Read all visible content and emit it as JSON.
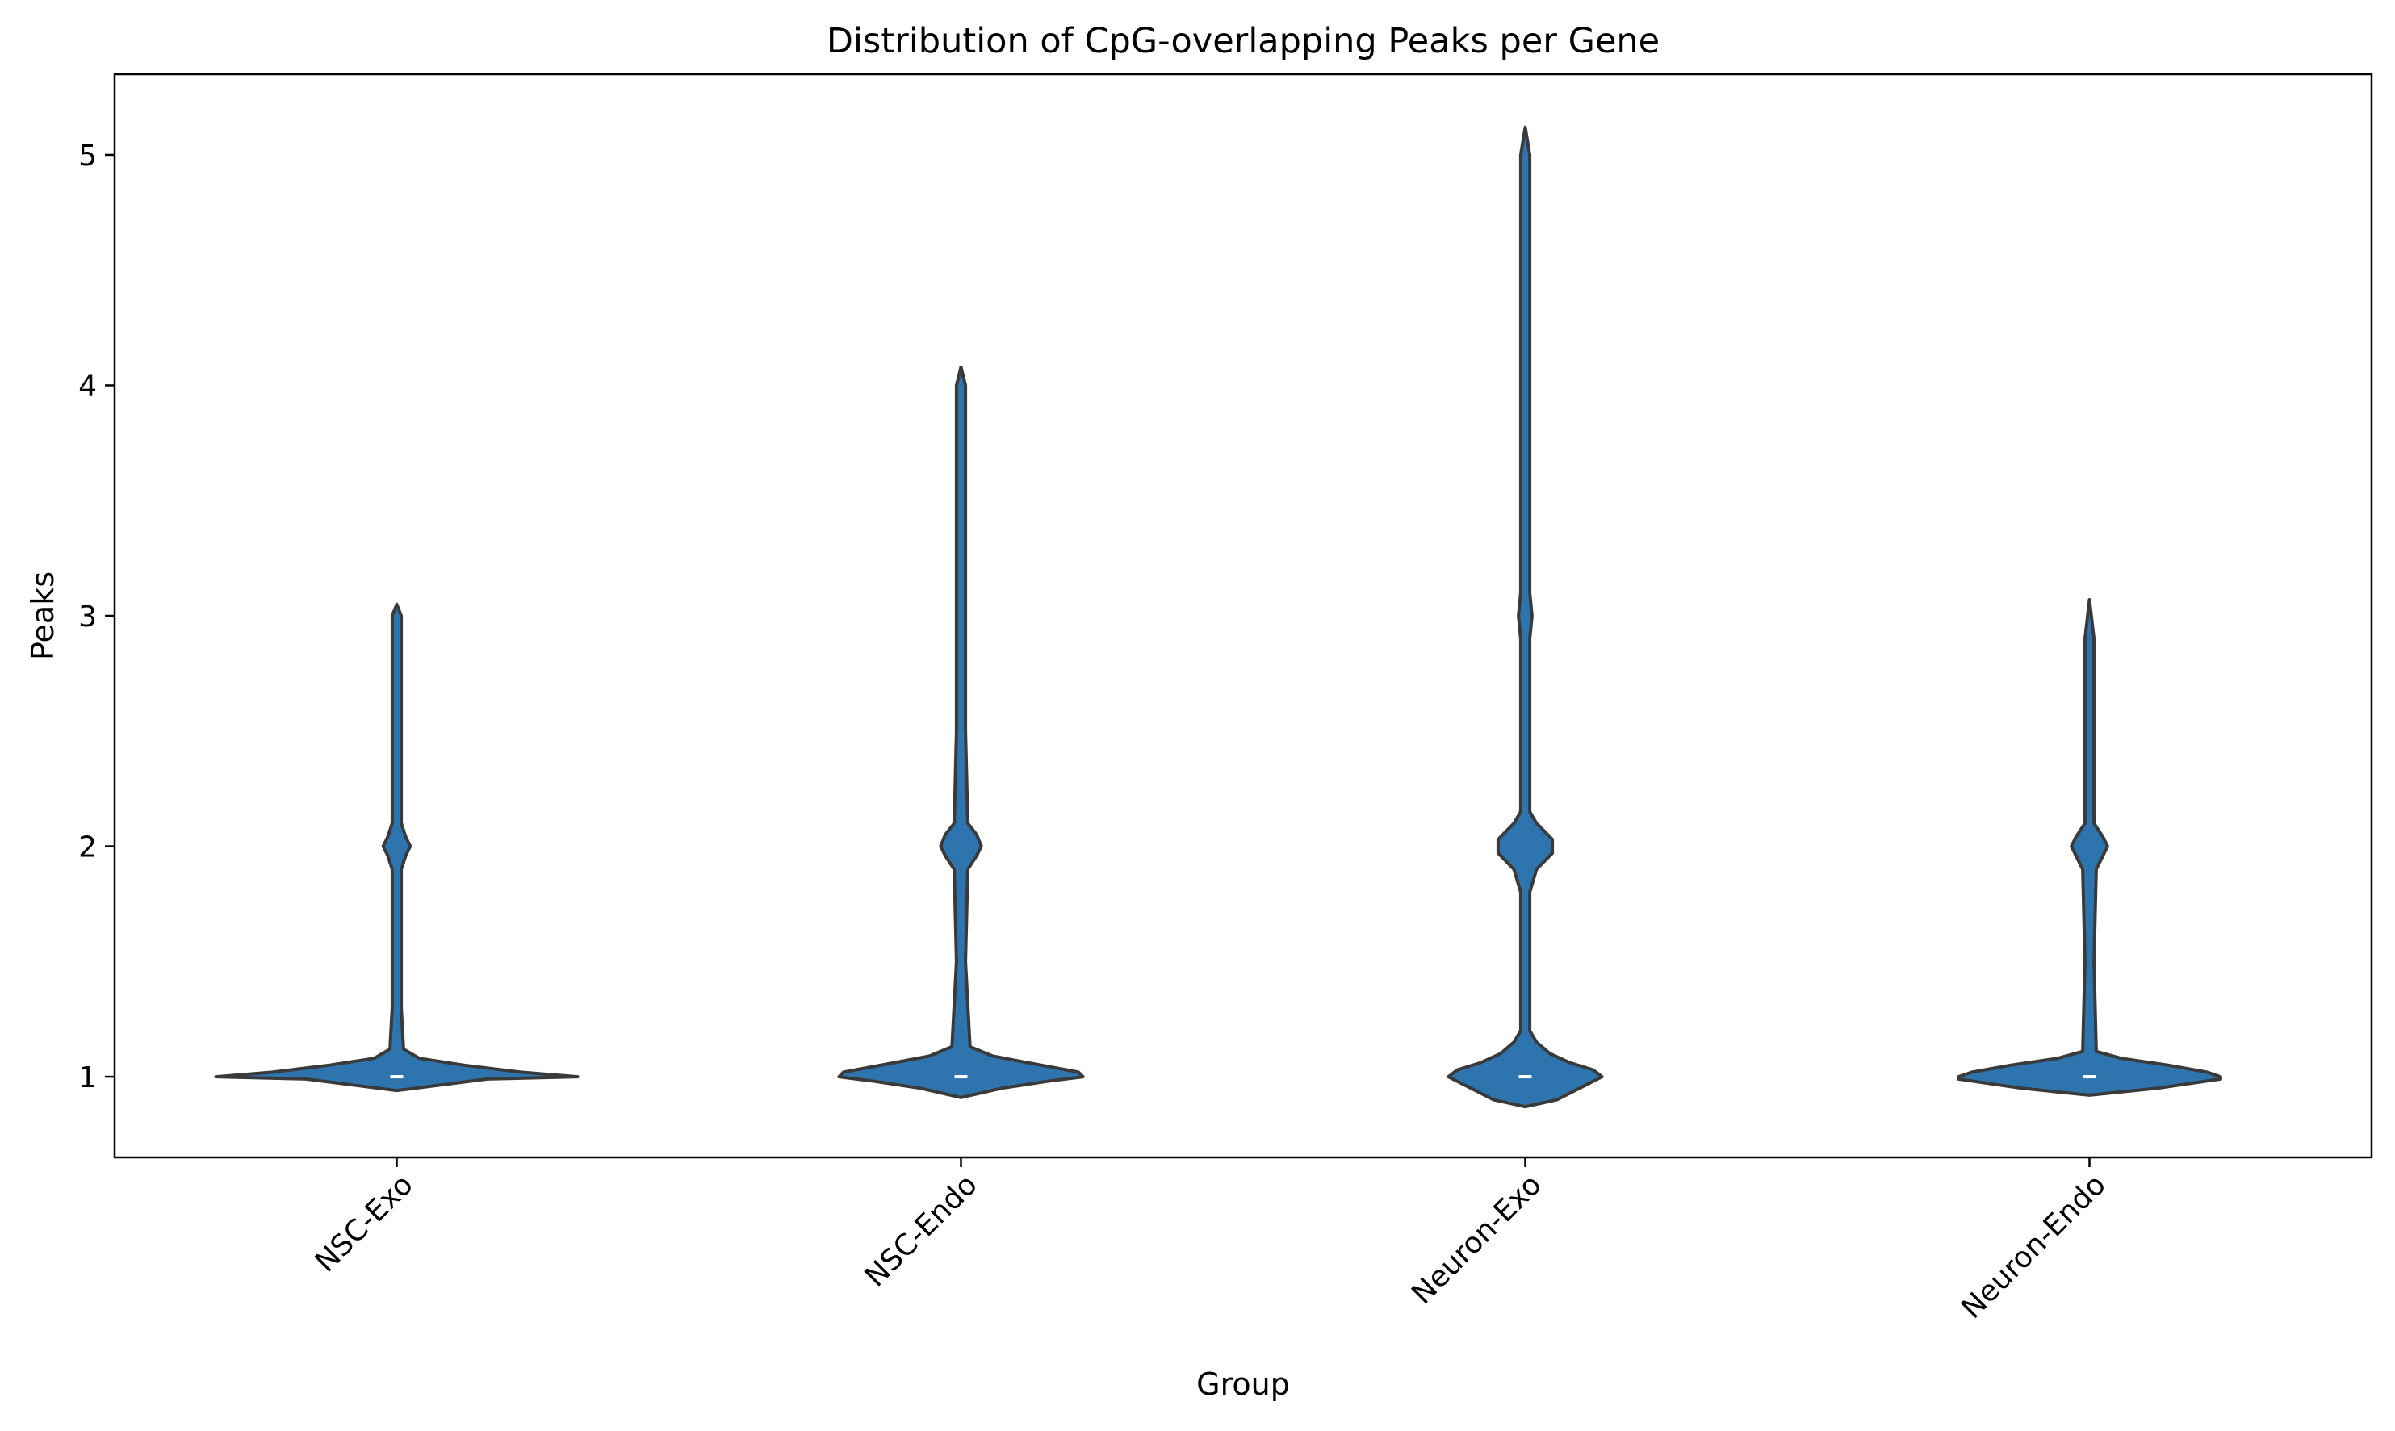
{
  "chart_data": {
    "type": "violin",
    "title": "Distribution of CpG-overlapping Peaks per Gene",
    "xlabel": "Group",
    "ylabel": "Peaks",
    "categories": [
      "NSC-Exo",
      "NSC-Endo",
      "Neuron-Exo",
      "Neuron-Endo"
    ],
    "ylim": [
      0.65,
      5.35
    ],
    "yticks": [
      1,
      2,
      3,
      4,
      5
    ],
    "ytick_labels": [
      "1",
      "2",
      "3",
      "4",
      "5"
    ],
    "grid": false,
    "fill_color": "#2e75b0",
    "edge_color": "#3a3a3a",
    "median_color": "#ffffff",
    "groups": [
      {
        "name": "NSC-Exo",
        "median": 1,
        "min": 1,
        "max": 3.05,
        "density": [
          [
            0.94,
            0.0
          ],
          [
            0.99,
            0.4
          ],
          [
            1.0,
            0.8
          ],
          [
            1.02,
            0.55
          ],
          [
            1.05,
            0.3
          ],
          [
            1.08,
            0.1
          ],
          [
            1.12,
            0.03
          ],
          [
            1.3,
            0.02
          ],
          [
            1.9,
            0.02
          ],
          [
            1.96,
            0.04
          ],
          [
            2.0,
            0.06
          ],
          [
            2.04,
            0.04
          ],
          [
            2.1,
            0.02
          ],
          [
            2.8,
            0.02
          ],
          [
            3.0,
            0.02
          ],
          [
            3.05,
            0.0
          ]
        ]
      },
      {
        "name": "NSC-Endo",
        "median": 1,
        "min": 1,
        "max": 4.08,
        "density": [
          [
            0.91,
            0.0
          ],
          [
            0.95,
            0.18
          ],
          [
            0.98,
            0.38
          ],
          [
            1.0,
            0.54
          ],
          [
            1.02,
            0.52
          ],
          [
            1.06,
            0.3
          ],
          [
            1.09,
            0.14
          ],
          [
            1.13,
            0.04
          ],
          [
            1.5,
            0.02
          ],
          [
            1.9,
            0.03
          ],
          [
            1.96,
            0.07
          ],
          [
            2.0,
            0.09
          ],
          [
            2.05,
            0.07
          ],
          [
            2.1,
            0.03
          ],
          [
            2.5,
            0.02
          ],
          [
            3.0,
            0.02
          ],
          [
            4.0,
            0.02
          ],
          [
            4.08,
            0.0
          ]
        ]
      },
      {
        "name": "Neuron-Exo",
        "median": 1,
        "min": 1,
        "max": 5.12,
        "density": [
          [
            0.87,
            0.0
          ],
          [
            0.9,
            0.14
          ],
          [
            0.95,
            0.24
          ],
          [
            1.0,
            0.34
          ],
          [
            1.03,
            0.3
          ],
          [
            1.06,
            0.2
          ],
          [
            1.1,
            0.11
          ],
          [
            1.15,
            0.05
          ],
          [
            1.2,
            0.02
          ],
          [
            1.8,
            0.02
          ],
          [
            1.9,
            0.05
          ],
          [
            1.97,
            0.12
          ],
          [
            2.03,
            0.12
          ],
          [
            2.1,
            0.05
          ],
          [
            2.15,
            0.02
          ],
          [
            2.9,
            0.02
          ],
          [
            3.0,
            0.03
          ],
          [
            3.1,
            0.02
          ],
          [
            5.0,
            0.02
          ],
          [
            5.12,
            0.0
          ]
        ]
      },
      {
        "name": "Neuron-Endo",
        "median": 1,
        "min": 1,
        "max": 3.07,
        "density": [
          [
            0.92,
            0.0
          ],
          [
            0.95,
            0.3
          ],
          [
            0.99,
            0.58
          ],
          [
            1.0,
            0.58
          ],
          [
            1.02,
            0.52
          ],
          [
            1.05,
            0.35
          ],
          [
            1.08,
            0.14
          ],
          [
            1.11,
            0.03
          ],
          [
            1.5,
            0.02
          ],
          [
            1.9,
            0.03
          ],
          [
            1.96,
            0.06
          ],
          [
            2.0,
            0.08
          ],
          [
            2.04,
            0.06
          ],
          [
            2.1,
            0.02
          ],
          [
            2.9,
            0.02
          ],
          [
            3.07,
            0.0
          ]
        ]
      }
    ]
  }
}
